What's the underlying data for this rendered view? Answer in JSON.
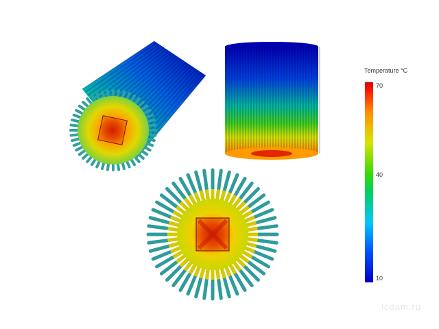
{
  "colorbar": {
    "title": "Temperature °C",
    "tick_max": "70",
    "tick_mid": "40",
    "tick_min": "10",
    "colors": [
      "#0000c8",
      "#0050ff",
      "#00c8ff",
      "#00d060",
      "#3cdc00",
      "#d8e400",
      "#ff9000",
      "#ff2000",
      "#e00000"
    ]
  },
  "heatsink": {
    "fin_count": 48,
    "views": [
      "isometric-view",
      "side-view",
      "top-view"
    ]
  },
  "watermark": "lcdam.ru"
}
